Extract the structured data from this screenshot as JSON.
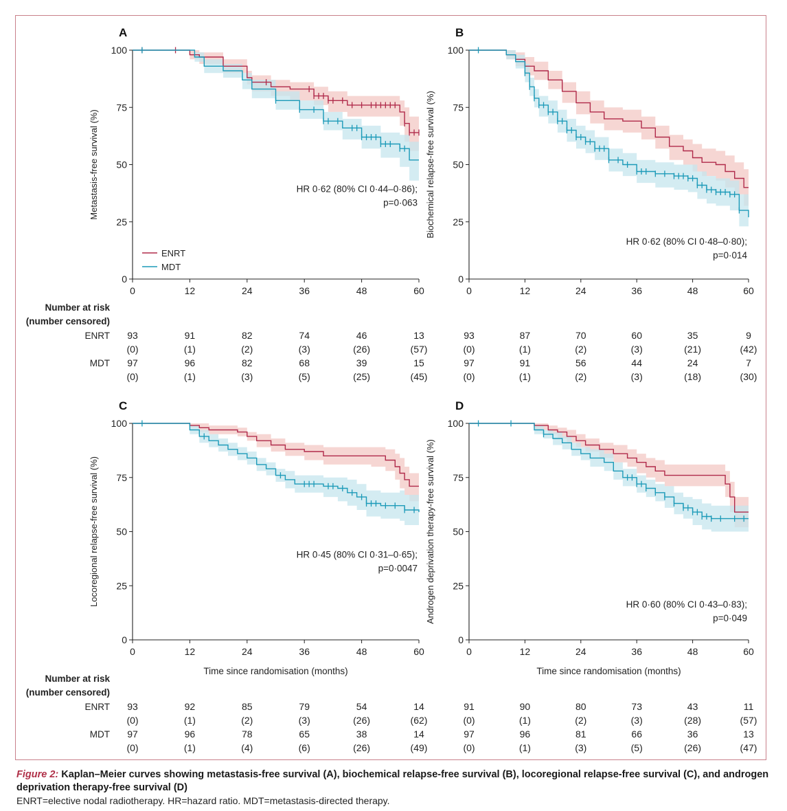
{
  "colors": {
    "enrt": "#b02a4a",
    "enrt_band": "#f3c8c4",
    "mdt": "#1c9ab8",
    "mdt_band": "#c5e6ee",
    "frame": "#c9808a"
  },
  "legend": {
    "enrt": "ENRT",
    "mdt": "MDT"
  },
  "risk_table": {
    "header_line1": "Number at risk",
    "header_line2": "(number censored)",
    "enrt_label": "ENRT",
    "mdt_label": "MDT"
  },
  "chart_data": [
    {
      "panel": "A",
      "type": "line",
      "subtype": "kaplan-meier",
      "ylabel": "Metastasis-free survival (%)",
      "xlabel": "",
      "xlim": [
        0,
        60
      ],
      "ylim": [
        0,
        100
      ],
      "xticks": [
        "0",
        "12",
        "24",
        "36",
        "48",
        "60"
      ],
      "yticks": [
        "0",
        "25",
        "50",
        "75",
        "100"
      ],
      "annotation": [
        "HR 0·62 (80% CI 0·44–0·86);",
        "p=0·063"
      ],
      "legend": true,
      "series": [
        {
          "name": "ENRT",
          "x": [
            0,
            12,
            14,
            19,
            24,
            25,
            29,
            33,
            38,
            41,
            45,
            56,
            57,
            58,
            60
          ],
          "y": [
            100,
            98,
            97,
            93,
            88,
            86,
            84,
            83,
            80,
            78,
            76,
            73,
            68,
            64,
            64
          ],
          "lower": [
            100,
            96,
            94,
            90,
            85,
            82,
            80,
            78,
            76,
            73,
            71,
            67,
            60,
            56,
            56
          ],
          "upper": [
            100,
            100,
            99,
            96,
            91,
            89,
            87,
            86,
            84,
            82,
            80,
            78,
            75,
            71,
            71
          ],
          "censor_x": [
            2,
            9,
            28,
            37,
            38,
            39,
            40,
            41,
            42,
            44,
            46,
            48,
            50,
            51,
            52,
            53,
            54,
            55,
            57,
            58,
            59,
            60
          ]
        },
        {
          "name": "MDT",
          "x": [
            0,
            13,
            15,
            19,
            23,
            25,
            30,
            35,
            40,
            44,
            48,
            52,
            56,
            58,
            60
          ],
          "y": [
            100,
            97,
            93,
            91,
            87,
            83,
            78,
            74,
            69,
            66,
            62,
            59,
            57,
            52,
            52
          ],
          "lower": [
            100,
            95,
            90,
            88,
            83,
            79,
            74,
            70,
            65,
            61,
            57,
            53,
            49,
            43,
            43
          ],
          "upper": [
            100,
            99,
            96,
            94,
            90,
            87,
            82,
            78,
            73,
            70,
            67,
            64,
            63,
            60,
            60
          ],
          "censor_x": [
            2,
            30,
            35,
            38,
            40,
            41,
            43,
            46,
            47,
            48,
            49,
            50,
            51,
            52,
            53,
            54,
            56,
            57
          ]
        }
      ],
      "risk": {
        "ticks": [
          "0",
          "12",
          "24",
          "36",
          "48",
          "60"
        ],
        "enrt": [
          "93",
          "91",
          "82",
          "74",
          "46",
          "13"
        ],
        "enrt_censored": [
          "(0)",
          "(1)",
          "(2)",
          "(3)",
          "(26)",
          "(57)"
        ],
        "mdt": [
          "97",
          "96",
          "82",
          "68",
          "39",
          "15"
        ],
        "mdt_censored": [
          "(0)",
          "(1)",
          "(3)",
          "(5)",
          "(25)",
          "(45)"
        ]
      }
    },
    {
      "panel": "B",
      "type": "line",
      "subtype": "kaplan-meier",
      "ylabel": "Biochemical relapse-free survival (%)",
      "xlabel": "",
      "xlim": [
        0,
        60
      ],
      "ylim": [
        0,
        100
      ],
      "xticks": [
        "0",
        "12",
        "24",
        "36",
        "48",
        "60"
      ],
      "yticks": [
        "0",
        "25",
        "50",
        "75",
        "100"
      ],
      "annotation": [
        "HR 0·62 (80% CI 0·48–0·80);",
        "p=0·014"
      ],
      "legend": false,
      "series": [
        {
          "name": "ENRT",
          "x": [
            0,
            8,
            10,
            12,
            14,
            17,
            20,
            23,
            26,
            29,
            33,
            37,
            40,
            43,
            46,
            48,
            50,
            53,
            55,
            57,
            59,
            60
          ],
          "y": [
            100,
            98,
            96,
            93,
            91,
            87,
            82,
            77,
            73,
            70,
            69,
            66,
            62,
            58,
            56,
            53,
            51,
            50,
            47,
            44,
            40,
            40
          ],
          "lower": [
            100,
            96,
            93,
            89,
            87,
            83,
            77,
            72,
            68,
            65,
            64,
            61,
            57,
            52,
            50,
            47,
            45,
            43,
            40,
            37,
            32,
            32
          ],
          "upper": [
            100,
            100,
            99,
            97,
            95,
            91,
            86,
            82,
            78,
            75,
            74,
            71,
            67,
            63,
            61,
            59,
            57,
            56,
            54,
            51,
            48,
            48
          ]
        },
        {
          "name": "MDT",
          "x": [
            0,
            8,
            10,
            12,
            13,
            14,
            15,
            17,
            19,
            21,
            23,
            25,
            27,
            30,
            33,
            36,
            40,
            44,
            47,
            49,
            51,
            53,
            56,
            58,
            60
          ],
          "y": [
            100,
            98,
            95,
            90,
            84,
            79,
            76,
            73,
            69,
            65,
            62,
            60,
            57,
            52,
            50,
            47,
            46,
            45,
            44,
            41,
            39,
            38,
            37,
            30,
            27
          ],
          "lower": [
            100,
            96,
            92,
            86,
            80,
            75,
            71,
            68,
            64,
            60,
            57,
            55,
            52,
            47,
            45,
            42,
            40,
            39,
            38,
            35,
            33,
            32,
            30,
            23,
            20
          ],
          "upper": [
            100,
            100,
            98,
            94,
            88,
            83,
            80,
            78,
            74,
            70,
            67,
            65,
            62,
            57,
            55,
            52,
            51,
            50,
            50,
            47,
            45,
            44,
            43,
            37,
            34
          ],
          "censor_x": [
            2,
            12,
            13,
            14,
            15,
            16,
            17,
            18,
            19,
            20,
            21,
            22,
            23,
            24,
            25,
            26,
            27,
            28,
            29,
            30,
            32,
            34,
            36,
            37,
            38,
            40,
            42,
            44,
            45,
            46,
            47,
            48,
            49,
            50,
            51,
            52,
            53,
            54,
            55,
            56,
            57,
            58
          ]
        }
      ],
      "risk": {
        "ticks": [
          "0",
          "12",
          "24",
          "36",
          "48",
          "60"
        ],
        "enrt": [
          "93",
          "87",
          "70",
          "60",
          "35",
          "9"
        ],
        "enrt_censored": [
          "(0)",
          "(1)",
          "(2)",
          "(3)",
          "(21)",
          "(42)"
        ],
        "mdt": [
          "97",
          "91",
          "56",
          "44",
          "24",
          "7"
        ],
        "mdt_censored": [
          "(0)",
          "(1)",
          "(2)",
          "(3)",
          "(18)",
          "(30)"
        ]
      }
    },
    {
      "panel": "C",
      "type": "line",
      "subtype": "kaplan-meier",
      "ylabel": "Locoregional relapse-free survival (%)",
      "xlabel": "Time since randomisation (months)",
      "xlim": [
        0,
        60
      ],
      "ylim": [
        0,
        100
      ],
      "xticks": [
        "0",
        "12",
        "24",
        "36",
        "48",
        "60"
      ],
      "yticks": [
        "0",
        "25",
        "50",
        "75",
        "100"
      ],
      "annotation": [
        "HR 0·45 (80% CI 0·31–0·65);",
        "p=0·0047"
      ],
      "legend": false,
      "series": [
        {
          "name": "ENRT",
          "x": [
            0,
            12,
            14,
            16,
            22,
            24,
            26,
            29,
            32,
            36,
            40,
            50,
            53,
            55,
            56,
            57,
            58,
            60
          ],
          "y": [
            100,
            99,
            98,
            97,
            96,
            94,
            92,
            90,
            88,
            87,
            85,
            85,
            83,
            80,
            77,
            74,
            71,
            71
          ],
          "lower": [
            100,
            98,
            96,
            95,
            94,
            92,
            89,
            87,
            85,
            83,
            81,
            80,
            78,
            74,
            70,
            67,
            64,
            64
          ],
          "upper": [
            100,
            100,
            100,
            99,
            98,
            96,
            95,
            93,
            91,
            90,
            89,
            89,
            88,
            86,
            84,
            80,
            77,
            77
          ]
        },
        {
          "name": "MDT",
          "x": [
            0,
            12,
            14,
            16,
            18,
            20,
            22,
            24,
            26,
            28,
            30,
            32,
            34,
            38,
            40,
            43,
            45,
            47,
            49,
            52,
            56,
            57,
            60
          ],
          "y": [
            100,
            97,
            94,
            92,
            90,
            88,
            86,
            84,
            81,
            79,
            76,
            74,
            72,
            72,
            71,
            70,
            68,
            66,
            63,
            62,
            62,
            60,
            59
          ],
          "lower": [
            100,
            95,
            91,
            89,
            87,
            85,
            83,
            81,
            78,
            76,
            73,
            70,
            68,
            68,
            66,
            64,
            62,
            60,
            57,
            56,
            55,
            53,
            52
          ],
          "upper": [
            100,
            99,
            97,
            95,
            93,
            91,
            89,
            87,
            84,
            82,
            79,
            78,
            76,
            76,
            75,
            75,
            74,
            72,
            69,
            68,
            69,
            67,
            66
          ],
          "censor_x": [
            2,
            15,
            31,
            36,
            37,
            38,
            41,
            42,
            44,
            46,
            48,
            49,
            50,
            51,
            53,
            55,
            57,
            59
          ]
        }
      ],
      "risk": {
        "ticks": [
          "0",
          "12",
          "24",
          "36",
          "48",
          "60"
        ],
        "enrt": [
          "93",
          "92",
          "85",
          "79",
          "54",
          "14"
        ],
        "enrt_censored": [
          "(0)",
          "(1)",
          "(2)",
          "(3)",
          "(26)",
          "(62)"
        ],
        "mdt": [
          "97",
          "96",
          "78",
          "65",
          "38",
          "14"
        ],
        "mdt_censored": [
          "(0)",
          "(1)",
          "(4)",
          "(6)",
          "(26)",
          "(49)"
        ]
      }
    },
    {
      "panel": "D",
      "type": "line",
      "subtype": "kaplan-meier",
      "ylabel": "Androgen deprivation therapy-free survival (%)",
      "xlabel": "Time since randomisation (months)",
      "xlim": [
        0,
        60
      ],
      "ylim": [
        0,
        100
      ],
      "xticks": [
        "0",
        "12",
        "24",
        "36",
        "48",
        "60"
      ],
      "yticks": [
        "0",
        "25",
        "50",
        "75",
        "100"
      ],
      "annotation": [
        "HR 0·60 (80% CI 0·43–0·83);",
        "p=0·049"
      ],
      "legend": false,
      "series": [
        {
          "name": "ENRT",
          "x": [
            0,
            14,
            17,
            19,
            21,
            23,
            25,
            28,
            31,
            34,
            36,
            38,
            40,
            42,
            55,
            56,
            57,
            60
          ],
          "y": [
            100,
            99,
            97,
            96,
            94,
            92,
            90,
            88,
            86,
            84,
            82,
            80,
            78,
            76,
            72,
            66,
            59,
            59
          ],
          "lower": [
            100,
            97,
            95,
            93,
            91,
            89,
            87,
            84,
            82,
            80,
            77,
            75,
            73,
            71,
            66,
            59,
            52,
            52
          ],
          "upper": [
            100,
            100,
            99,
            98,
            97,
            95,
            93,
            91,
            90,
            88,
            86,
            84,
            83,
            81,
            78,
            73,
            66,
            66
          ]
        },
        {
          "name": "MDT",
          "x": [
            0,
            14,
            16,
            18,
            20,
            22,
            24,
            26,
            29,
            31,
            33,
            36,
            38,
            40,
            42,
            44,
            46,
            48,
            50,
            52,
            60
          ],
          "y": [
            100,
            97,
            95,
            93,
            91,
            88,
            86,
            84,
            82,
            78,
            75,
            72,
            70,
            68,
            66,
            63,
            61,
            59,
            57,
            56,
            56
          ],
          "lower": [
            100,
            95,
            93,
            90,
            88,
            85,
            83,
            80,
            78,
            74,
            71,
            68,
            66,
            64,
            61,
            58,
            56,
            53,
            51,
            50,
            50
          ],
          "upper": [
            100,
            99,
            97,
            96,
            94,
            91,
            89,
            88,
            86,
            82,
            79,
            76,
            74,
            72,
            71,
            68,
            66,
            65,
            63,
            62,
            62
          ],
          "censor_x": [
            2,
            9,
            16,
            34,
            35,
            36,
            37,
            38,
            40,
            42,
            44,
            46,
            47,
            48,
            49,
            50,
            51,
            52,
            54,
            57,
            59
          ]
        }
      ],
      "risk": {
        "ticks": [
          "0",
          "12",
          "24",
          "36",
          "48",
          "60"
        ],
        "enrt": [
          "91",
          "90",
          "80",
          "73",
          "43",
          "11"
        ],
        "enrt_censored": [
          "(0)",
          "(1)",
          "(2)",
          "(3)",
          "(28)",
          "(57)"
        ],
        "mdt": [
          "97",
          "96",
          "81",
          "66",
          "36",
          "13"
        ],
        "mdt_censored": [
          "(0)",
          "(1)",
          "(3)",
          "(5)",
          "(26)",
          "(47)"
        ]
      }
    }
  ],
  "caption": {
    "label": "Figure 2:",
    "title": "Kaplan–Meier curves showing metastasis-free survival (A), biochemical relapse-free survival (B), locoregional relapse-free survival (C), and androgen deprivation therapy-free survival (D)",
    "note": "ENRT=elective nodal radiotherapy. HR=hazard ratio. MDT=metastasis-directed therapy."
  }
}
